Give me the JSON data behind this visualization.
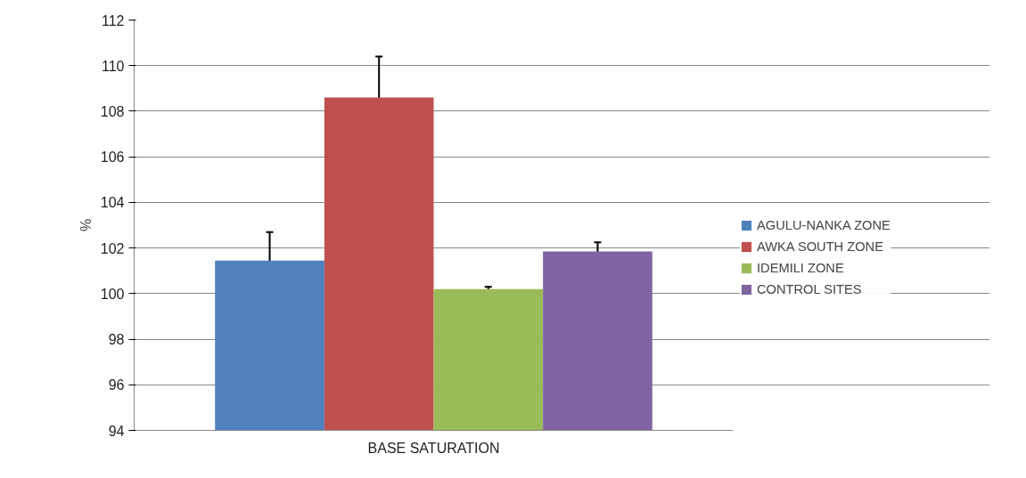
{
  "chart_data": {
    "type": "bar",
    "ylabel": "%",
    "categories": [
      "BASE SATURATION"
    ],
    "series": [
      {
        "name": "AGULU-NANKA ZONE",
        "color": "#4f81bd",
        "values": [
          101.45
        ],
        "errors": [
          1.25
        ]
      },
      {
        "name": "AWKA SOUTH ZONE",
        "color": "#c0504d",
        "values": [
          108.6
        ],
        "errors": [
          1.8
        ]
      },
      {
        "name": "IDEMILI ZONE",
        "color": "#9bbb59",
        "values": [
          100.2
        ],
        "errors": [
          0.1
        ]
      },
      {
        "name": "CONTROL SITES",
        "color": "#8064a2",
        "values": [
          101.85
        ],
        "errors": [
          0.4
        ]
      }
    ],
    "ylim": [
      94,
      112
    ],
    "yticks": [
      94,
      96,
      98,
      100,
      102,
      104,
      106,
      108,
      110,
      112
    ],
    "grid": "y",
    "legend": "right"
  }
}
